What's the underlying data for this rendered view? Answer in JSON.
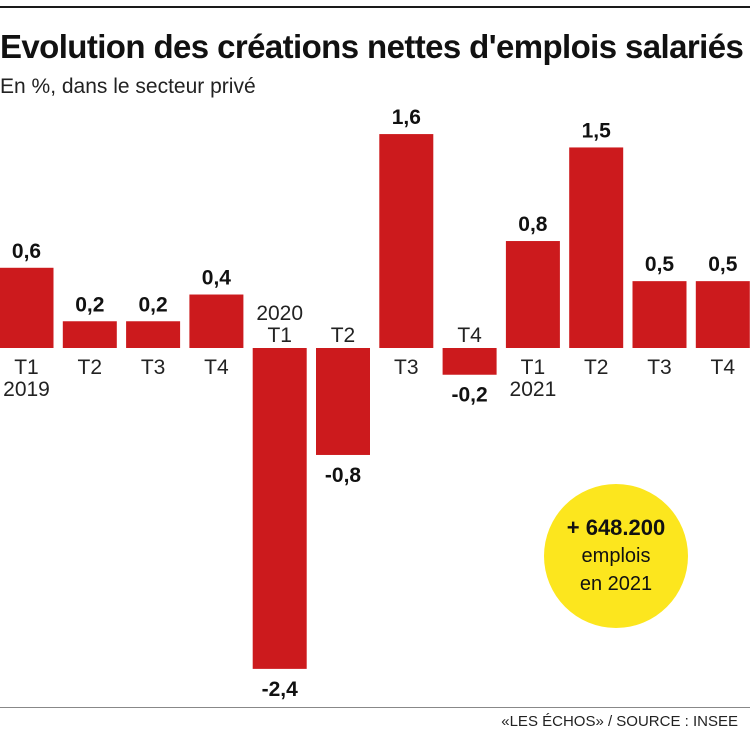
{
  "chart_data": {
    "type": "bar",
    "title": "Evolution des créations nettes d'emplois salariés",
    "subtitle": "En %, dans le secteur privé",
    "categories": [
      "T1",
      "T2",
      "T3",
      "T4",
      "T1",
      "T2",
      "T3",
      "T4",
      "T1",
      "T2",
      "T3",
      "T4"
    ],
    "years": [
      "2019",
      "",
      "",
      "",
      "2020",
      "",
      "",
      "",
      "2021",
      "",
      "",
      ""
    ],
    "values": [
      0.6,
      0.2,
      0.2,
      0.4,
      -2.4,
      -0.8,
      1.6,
      -0.2,
      0.8,
      1.5,
      0.5,
      0.5
    ],
    "value_labels": [
      "0,6",
      "0,2",
      "0,2",
      "0,4",
      "-2,4",
      "-0,8",
      "1,6",
      "-0,2",
      "0,8",
      "1,5",
      "0,5",
      "0,5"
    ],
    "bar_color": "#cc1a1d",
    "grid": false
  },
  "callout": {
    "value": "+ 648.200",
    "line1": "emplois",
    "line2": "en 2021",
    "color": "#fce61e"
  },
  "source": "«LES ÉCHOS» / SOURCE : INSEE"
}
